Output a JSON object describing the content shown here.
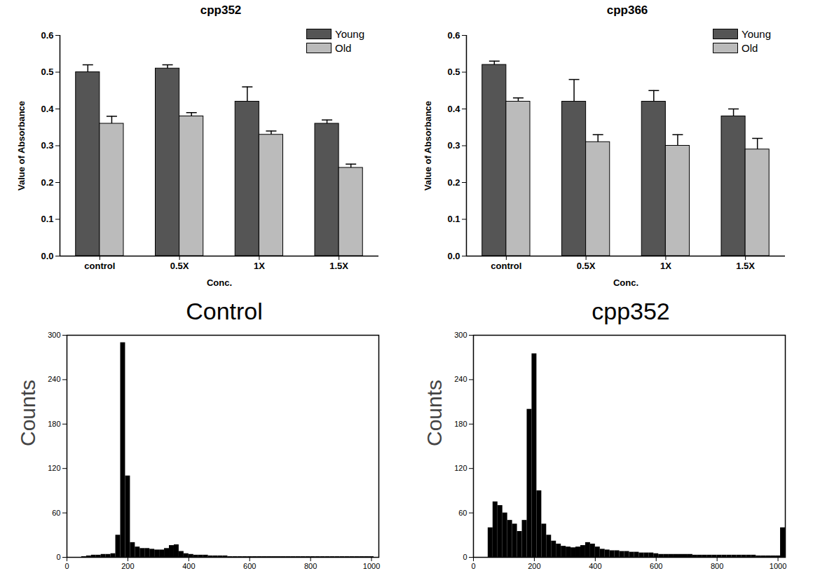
{
  "chart_data": [
    {
      "type": "bar",
      "title": "cpp352",
      "x_label": "Conc.",
      "y_label": "Value of Absorbance",
      "categories": [
        "control",
        "0.5X",
        "1X",
        "1.5X"
      ],
      "series": [
        {
          "name": "Young",
          "color": "#555555",
          "values": [
            0.5,
            0.51,
            0.42,
            0.36
          ],
          "errors": [
            0.02,
            0.01,
            0.04,
            0.01
          ]
        },
        {
          "name": "Old",
          "color": "#bbbbbb",
          "values": [
            0.36,
            0.38,
            0.33,
            0.24
          ],
          "errors": [
            0.02,
            0.01,
            0.01,
            0.01
          ]
        }
      ],
      "ylim": [
        0,
        0.6
      ],
      "yticks": [
        {
          "value": 0,
          "label": "0.0"
        },
        0.1,
        0.2,
        0.3,
        0.4,
        0.5,
        0.6
      ],
      "legend": "top-right"
    },
    {
      "type": "bar",
      "title": "cpp366",
      "x_label": "Conc.",
      "y_label": "Value of Absorbance",
      "categories": [
        "control",
        "0.5X",
        "1X",
        "1.5X"
      ],
      "series": [
        {
          "name": "Young",
          "color": "#555555",
          "values": [
            0.52,
            0.42,
            0.42,
            0.38
          ],
          "errors": [
            0.01,
            0.06,
            0.03,
            0.02
          ]
        },
        {
          "name": "Old",
          "color": "#bbbbbb",
          "values": [
            0.42,
            0.31,
            0.3,
            0.29
          ],
          "errors": [
            0.01,
            0.02,
            0.03,
            0.03
          ]
        }
      ],
      "ylim": [
        0,
        0.6
      ],
      "yticks": [
        {
          "value": 0,
          "label": "0.0"
        },
        0.1,
        0.2,
        0.3,
        0.4,
        0.5,
        0.6
      ],
      "legend": "top-right"
    },
    {
      "type": "histogram",
      "title": "Control",
      "y_label": "Counts",
      "color": "#000000",
      "bins": [
        0,
        16,
        32,
        48,
        64,
        80,
        96,
        112,
        128,
        144,
        160,
        176,
        192,
        208,
        224,
        240,
        256,
        272,
        288,
        304,
        320,
        336,
        352,
        368,
        384,
        400,
        416,
        432,
        448,
        464,
        480,
        496,
        512,
        528,
        544,
        560,
        576,
        592,
        608,
        624,
        640,
        656,
        672,
        688,
        704,
        720,
        736,
        752,
        768,
        784,
        800,
        816,
        832,
        848,
        864,
        880,
        896,
        912,
        928,
        944,
        960,
        976,
        992,
        1008,
        1024
      ],
      "counts": [
        0,
        0,
        0,
        1,
        2,
        3,
        3,
        4,
        4,
        5,
        30,
        290,
        110,
        20,
        14,
        12,
        12,
        11,
        10,
        10,
        12,
        16,
        17,
        8,
        5,
        4,
        3,
        3,
        3,
        2,
        2,
        2,
        2,
        1,
        1,
        1,
        1,
        1,
        1,
        1,
        1,
        1,
        1,
        1,
        1,
        1,
        1,
        1,
        1,
        1,
        1,
        1,
        1,
        1,
        1,
        1,
        1,
        1,
        1,
        1,
        1,
        1,
        1,
        0
      ],
      "xlim": [
        0,
        1024
      ],
      "xticks": [
        0,
        200,
        400,
        600,
        800,
        1000
      ],
      "ylim": [
        0,
        300
      ],
      "yticks": [
        0,
        60,
        120,
        180,
        240,
        300
      ]
    },
    {
      "type": "histogram",
      "title": "cpp352",
      "y_label": "Counts",
      "color": "#000000",
      "bins": [
        0,
        16,
        32,
        48,
        64,
        80,
        96,
        112,
        128,
        144,
        160,
        176,
        192,
        208,
        224,
        240,
        256,
        272,
        288,
        304,
        320,
        336,
        352,
        368,
        384,
        400,
        416,
        432,
        448,
        464,
        480,
        496,
        512,
        528,
        544,
        560,
        576,
        592,
        608,
        624,
        640,
        656,
        672,
        688,
        704,
        720,
        736,
        752,
        768,
        784,
        800,
        816,
        832,
        848,
        864,
        880,
        896,
        912,
        928,
        944,
        960,
        976,
        992,
        1008,
        1024
      ],
      "counts": [
        0,
        0,
        0,
        40,
        75,
        70,
        60,
        50,
        45,
        35,
        50,
        200,
        275,
        90,
        45,
        30,
        22,
        18,
        15,
        14,
        13,
        14,
        16,
        20,
        18,
        14,
        11,
        10,
        9,
        9,
        8,
        8,
        7,
        7,
        6,
        6,
        6,
        5,
        4,
        4,
        4,
        4,
        4,
        4,
        4,
        3,
        3,
        3,
        3,
        3,
        3,
        3,
        3,
        3,
        3,
        3,
        3,
        3,
        2,
        2,
        2,
        2,
        2,
        40
      ],
      "xlim": [
        0,
        1024
      ],
      "xticks": [
        0,
        200,
        400,
        600,
        800,
        1000
      ],
      "ylim": [
        0,
        300
      ],
      "yticks": [
        0,
        60,
        120,
        180,
        240,
        300
      ]
    }
  ]
}
